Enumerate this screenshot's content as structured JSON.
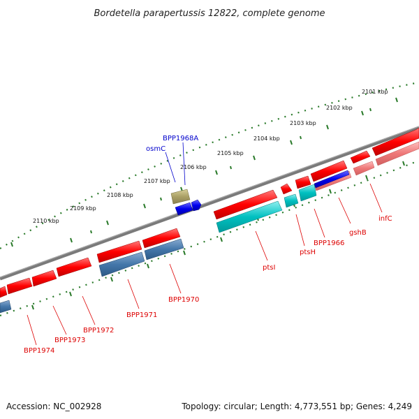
{
  "title": "Bordetella parapertussis 12822, complete genome",
  "footer": {
    "accession": "Accession: NC_002928",
    "topology": "Topology: circular; Length: 4,773,551 bp; Genes: 4,249"
  },
  "ticks": [
    "2101 kbp",
    "2102 kbp",
    "2103 kbp",
    "2104 kbp",
    "2105 kbp",
    "2106 kbp",
    "2107 kbp",
    "2108 kbp",
    "2109 kbp",
    "2110 kbp"
  ],
  "genes": {
    "blue": [
      "BPP1968A",
      "osmC"
    ],
    "red": [
      "infC",
      "gshB",
      "BPP1966",
      "ptsH",
      "ptsI",
      "BPP1970",
      "BPP1971",
      "BPP1972",
      "BPP1973",
      "BPP1974"
    ]
  },
  "colors": {
    "cds_forward": "#ff0000",
    "cds_reverse_light": "#ee7777",
    "cds_steel": "#4477aa",
    "cds_cyan": "#00bbbb",
    "cds_blue": "#0000ee",
    "misc_olive": "#aaa066",
    "tick_green": "#2a7a2a",
    "backbone": "#777777"
  }
}
